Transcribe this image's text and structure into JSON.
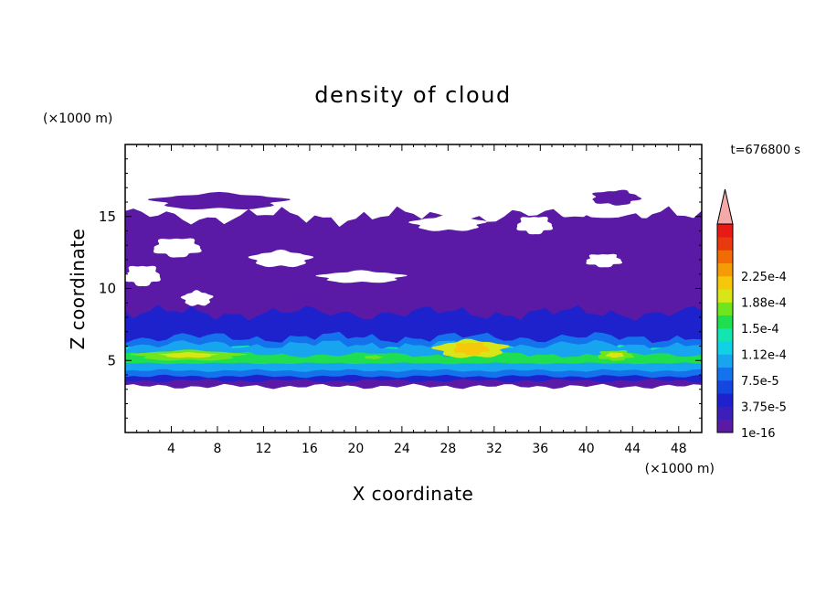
{
  "chart_data": {
    "type": "heatmap",
    "title": "density of cloud",
    "xlabel": "X coordinate",
    "ylabel": "Z coordinate",
    "x_unit": "(×1000 m)",
    "y_unit": "(×1000 m)",
    "time_label": "t=676800 s",
    "xlim": [
      0,
      50
    ],
    "ylim": [
      0,
      20
    ],
    "x_ticks": [
      4,
      8,
      12,
      16,
      20,
      24,
      28,
      32,
      36,
      40,
      44,
      48
    ],
    "y_ticks": [
      5,
      10,
      15
    ],
    "colorbar": {
      "labels": [
        "1e-16",
        "3.75e-5",
        "7.5e-5",
        "1.12e-4",
        "1.5e-4",
        "1.88e-4",
        "2.25e-4"
      ],
      "colors": [
        "#5a1aa6",
        "#3b1fb8",
        "#1e22cc",
        "#1446e0",
        "#1473ec",
        "#18a5f0",
        "#10d2e4",
        "#12e6b0",
        "#1ede52",
        "#6ee61e",
        "#d8e618",
        "#f6c80c",
        "#f69a08",
        "#f26c06",
        "#e83a0c",
        "#e81a16"
      ],
      "extend_color": "#f4a8a8"
    },
    "cloud_structure": {
      "layers": [
        {
          "level": 0,
          "x": [
            0,
            50
          ],
          "z": [
            3.2,
            15.0
          ]
        },
        {
          "level": 2,
          "x": [
            0,
            50
          ],
          "z": [
            3.6,
            8.3
          ]
        },
        {
          "level": 4,
          "x": [
            0,
            50
          ],
          "z": [
            3.9,
            6.6
          ]
        },
        {
          "level": 7,
          "x": [
            0,
            50
          ],
          "z": [
            4.6,
            5.8
          ]
        }
      ],
      "cores": [
        {
          "x": [
            1,
            10
          ],
          "z": [
            5.0,
            5.7
          ],
          "level": 9
        },
        {
          "x": [
            20,
            23
          ],
          "z": [
            4.9,
            5.5
          ],
          "level": 8
        },
        {
          "x": [
            27,
            33
          ],
          "z": [
            5.2,
            6.4
          ],
          "level": 10
        },
        {
          "x": [
            41,
            44
          ],
          "z": [
            5.0,
            5.7
          ],
          "level": 9
        }
      ],
      "upper_patches": [
        {
          "x": [
            2.7,
            13.6
          ],
          "z": [
            15.5,
            16.6
          ]
        },
        {
          "x": [
            40.5,
            44.5
          ],
          "z": [
            15.8,
            16.8
          ]
        },
        {
          "x": [
            36,
            50
          ],
          "z": [
            13.0,
            15.0
          ]
        },
        {
          "x": [
            14,
            26
          ],
          "z": [
            12.8,
            14.2
          ]
        }
      ]
    }
  }
}
